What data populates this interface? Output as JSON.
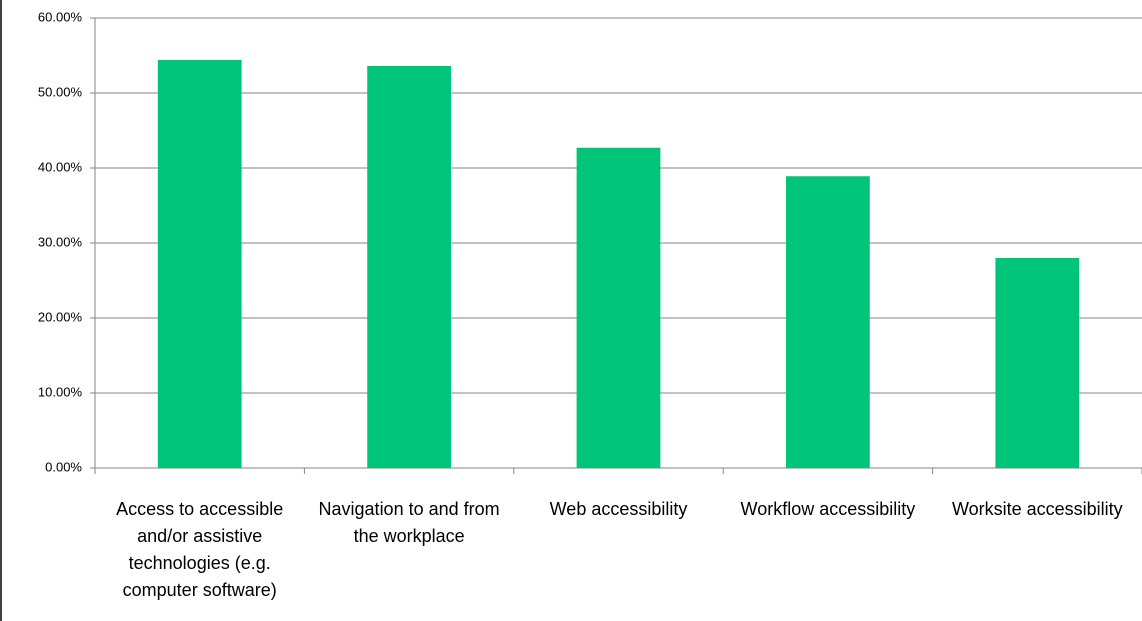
{
  "chart_data": {
    "type": "bar",
    "categories": [
      "Access to accessible and/or assistive technologies (e.g. computer software)",
      "Navigation to and from the workplace",
      "Web accessibility",
      "Workflow accessibility",
      "Worksite accessibility"
    ],
    "values": [
      54.4,
      53.6,
      42.7,
      38.9,
      28.0
    ],
    "color": "#00c47a",
    "ylim": [
      0,
      60
    ],
    "yticks": [
      {
        "value": 0,
        "label": "0.00%"
      },
      {
        "value": 10,
        "label": "10.00%"
      },
      {
        "value": 20,
        "label": "20.00%"
      },
      {
        "value": 30,
        "label": "30.00%"
      },
      {
        "value": 40,
        "label": "40.00%"
      },
      {
        "value": 50,
        "label": "50.00%"
      },
      {
        "value": 60,
        "label": "60.00%"
      }
    ],
    "grid": true
  }
}
